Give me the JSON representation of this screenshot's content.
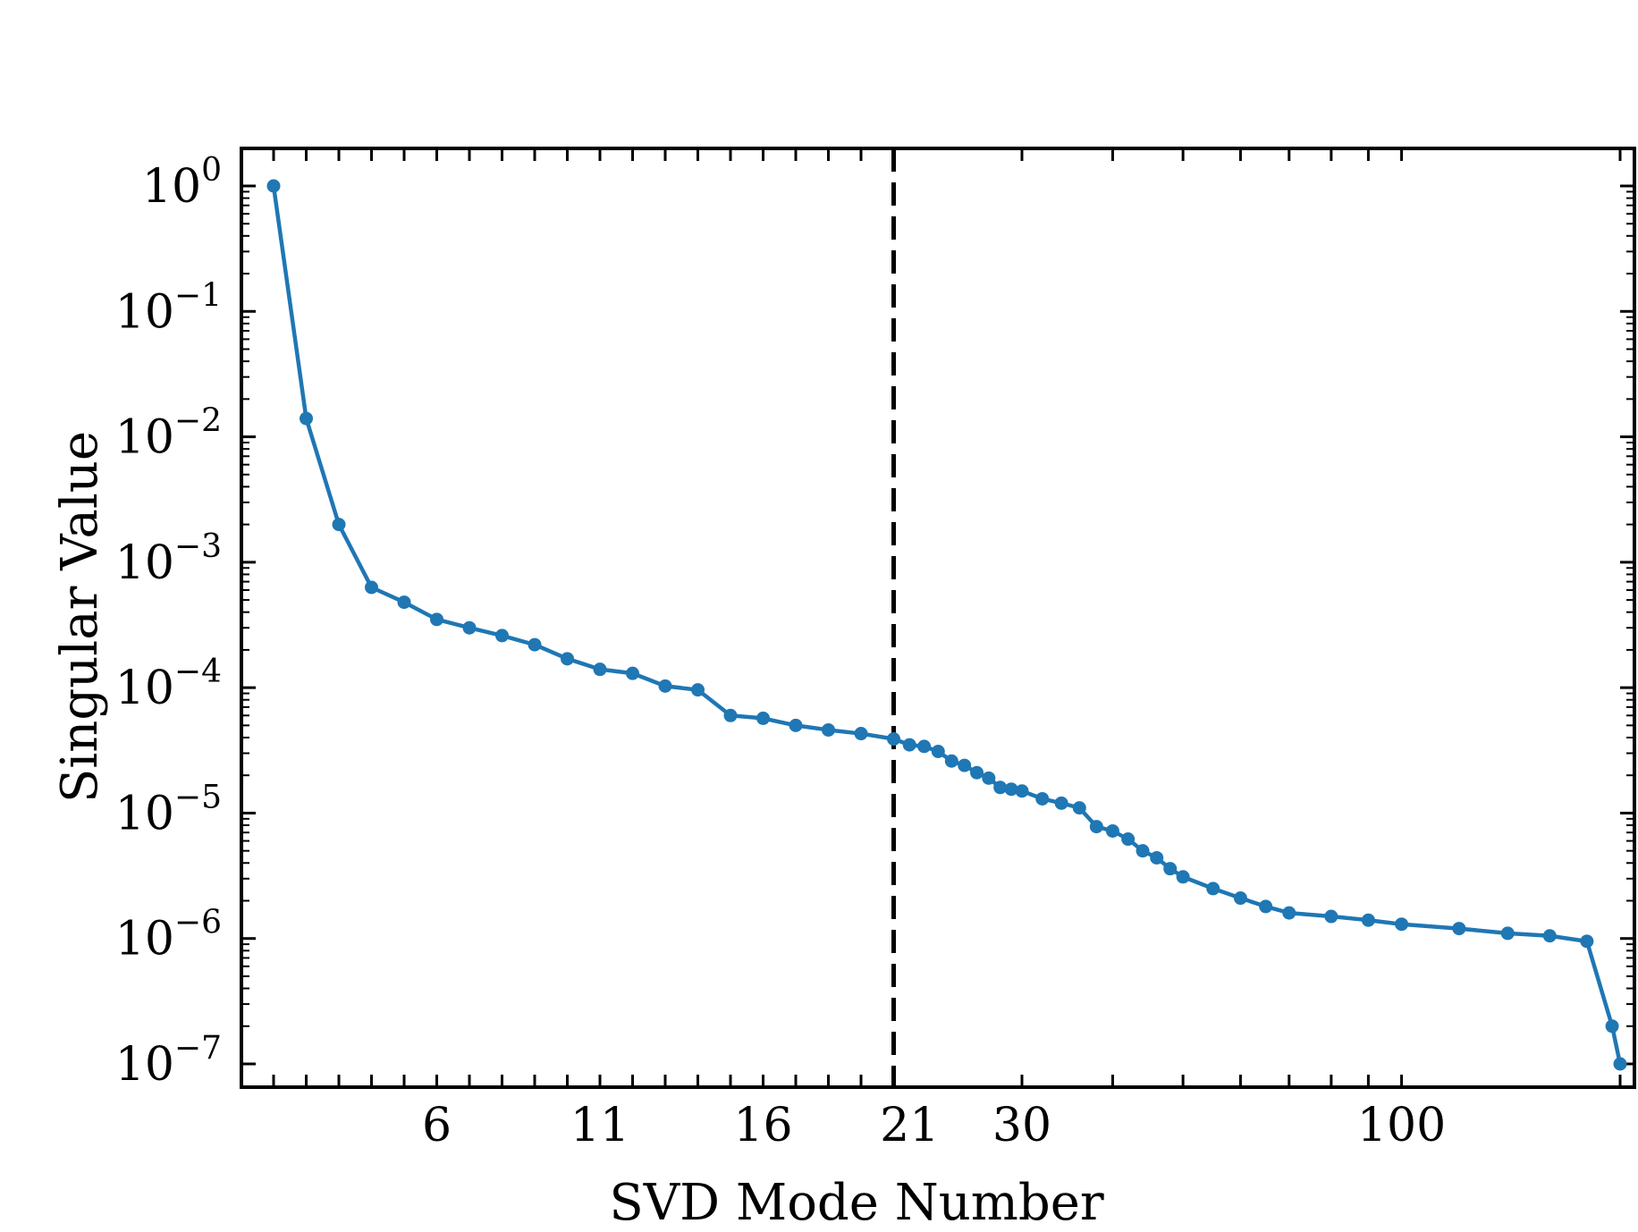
{
  "chart_data": {
    "type": "line",
    "xlabel": "SVD Mode Number",
    "ylabel": "Singular Value",
    "x_scale": "piecewise: linear for modes 1-20, logarithmic beyond",
    "y_scale": "log",
    "ylim": [
      1e-07,
      1
    ],
    "x_tick_labels": [
      "6",
      "11",
      "16",
      "21",
      "30",
      "100"
    ],
    "y_ticks": [
      {
        "base": "10",
        "exp": "0"
      },
      {
        "base": "10",
        "exp": "−1"
      },
      {
        "base": "10",
        "exp": "−2"
      },
      {
        "base": "10",
        "exp": "−3"
      },
      {
        "base": "10",
        "exp": "−4"
      },
      {
        "base": "10",
        "exp": "−5"
      },
      {
        "base": "10",
        "exp": "−6"
      },
      {
        "base": "10",
        "exp": "−7"
      }
    ],
    "reference_line": {
      "x": 20,
      "style": "dashed",
      "color": "#000000"
    },
    "series_color": "#1f77b4",
    "series": [
      {
        "x": [
          1,
          2,
          3,
          4,
          5,
          6,
          7,
          8,
          9,
          10,
          11,
          12,
          13,
          14,
          15,
          16,
          17,
          18,
          19,
          20,
          21,
          22,
          23,
          24,
          25,
          26,
          27,
          28,
          29,
          30,
          32,
          34,
          36,
          38,
          40,
          42,
          44,
          46,
          48,
          50,
          55,
          60,
          65,
          70,
          80,
          90,
          100,
          120,
          140,
          160,
          180,
          195,
          200
        ],
        "y": [
          1.0,
          0.014,
          0.002,
          0.00063,
          0.00048,
          0.00035,
          0.0003,
          0.00026,
          0.00022,
          0.00017,
          0.00014,
          0.00013,
          0.000103,
          9.6e-05,
          6e-05,
          5.7e-05,
          5e-05,
          4.6e-05,
          4.3e-05,
          3.9e-05,
          3.5e-05,
          3.4e-05,
          3.1e-05,
          2.6e-05,
          2.4e-05,
          2.1e-05,
          1.9e-05,
          1.6e-05,
          1.55e-05,
          1.5e-05,
          1.3e-05,
          1.2e-05,
          1.1e-05,
          7.8e-06,
          7.2e-06,
          6.2e-06,
          5e-06,
          4.4e-06,
          3.6e-06,
          3.1e-06,
          2.5e-06,
          2.1e-06,
          1.8e-06,
          1.6e-06,
          1.5e-06,
          1.4e-06,
          1.3e-06,
          1.2e-06,
          1.1e-06,
          1.05e-06,
          9.5e-07,
          2e-07,
          1e-07
        ]
      }
    ]
  }
}
